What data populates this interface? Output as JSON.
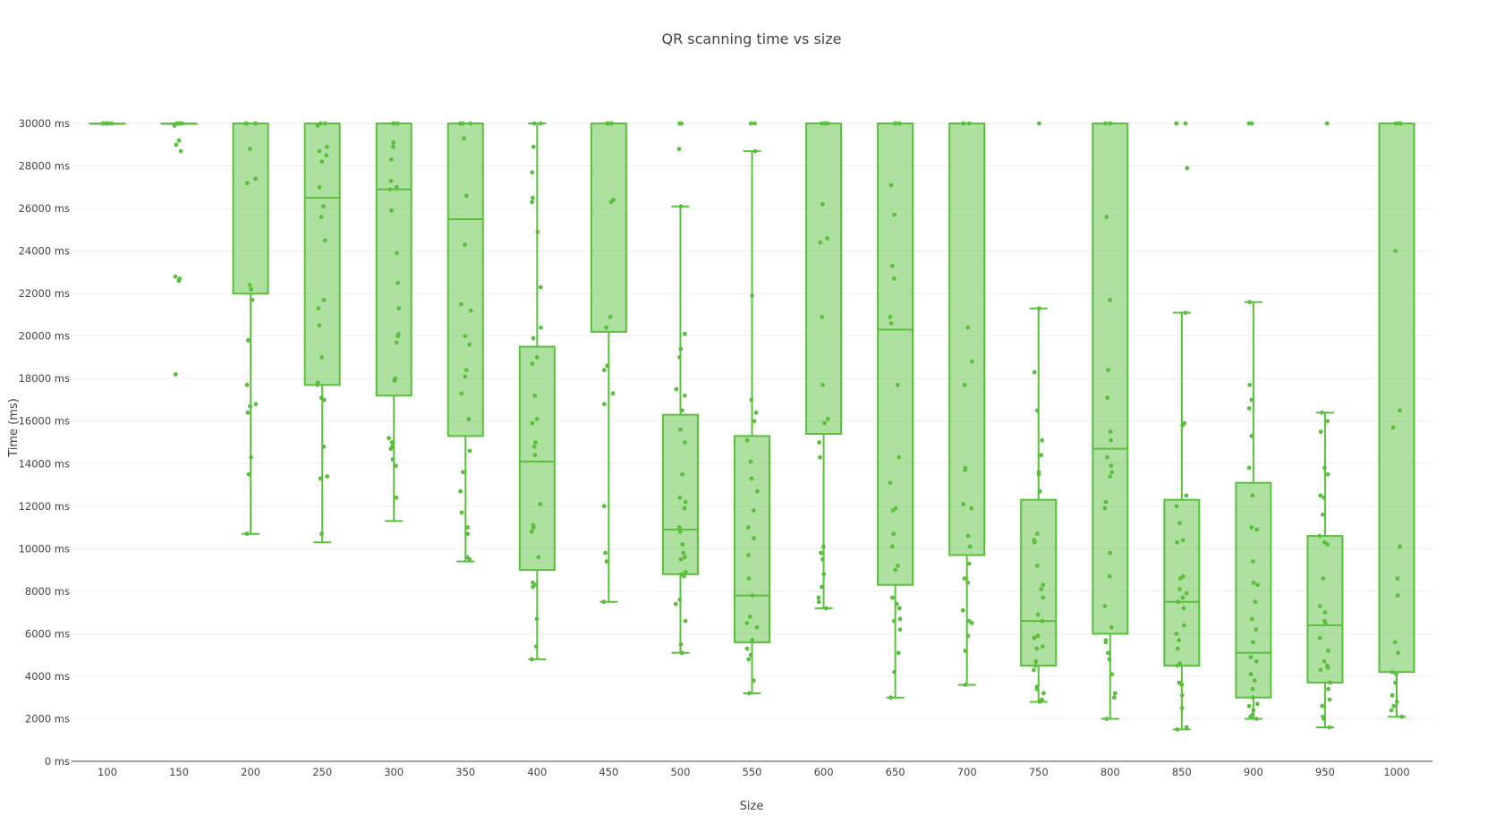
{
  "chart_data": {
    "type": "box",
    "title": "QR scanning time vs size",
    "xlabel": "Size",
    "ylabel": "Time (ms)",
    "ylim": [
      0,
      30000
    ],
    "grid": true,
    "legend": "none",
    "color": "#5bbf3e",
    "y_ticks": [
      {
        "value": 0,
        "label": "0 ms"
      },
      {
        "value": 2000,
        "label": "2000 ms"
      },
      {
        "value": 4000,
        "label": "4000 ms"
      },
      {
        "value": 6000,
        "label": "6000 ms"
      },
      {
        "value": 8000,
        "label": "8000 ms"
      },
      {
        "value": 10000,
        "label": "10000 ms"
      },
      {
        "value": 12000,
        "label": "12000 ms"
      },
      {
        "value": 14000,
        "label": "14000 ms"
      },
      {
        "value": 16000,
        "label": "16000 ms"
      },
      {
        "value": 18000,
        "label": "18000 ms"
      },
      {
        "value": 20000,
        "label": "20000 ms"
      },
      {
        "value": 22000,
        "label": "22000 ms"
      },
      {
        "value": 24000,
        "label": "24000 ms"
      },
      {
        "value": 26000,
        "label": "26000 ms"
      },
      {
        "value": 28000,
        "label": "28000 ms"
      },
      {
        "value": 30000,
        "label": "30000 ms"
      }
    ],
    "categories": [
      "100",
      "150",
      "200",
      "250",
      "300",
      "350",
      "400",
      "450",
      "500",
      "550",
      "600",
      "650",
      "700",
      "750",
      "800",
      "850",
      "900",
      "950",
      "1000"
    ],
    "boxes": [
      {
        "size": "100",
        "lower": 30000,
        "q1": 30000,
        "median": 30000,
        "q3": 30000,
        "upper": 30000,
        "points": [
          30000,
          30000,
          30000,
          30000,
          30000,
          30000,
          30000,
          30000
        ]
      },
      {
        "size": "150",
        "lower": 30000,
        "q1": 30000,
        "median": 30000,
        "q3": 30000,
        "upper": 30000,
        "points": [
          30000,
          30000,
          30000,
          30000,
          30000,
          29900,
          29200,
          29000,
          28700,
          22800,
          22700,
          22600,
          18200
        ]
      },
      {
        "size": "200",
        "lower": 10700,
        "q1": 22000,
        "median": 30000,
        "q3": 30000,
        "upper": 30000,
        "points": [
          30000,
          30000,
          30000,
          30000,
          28800,
          27400,
          27200,
          22400,
          22200,
          21700,
          19800,
          17700,
          16800,
          16700,
          16400,
          14300,
          13500,
          10700
        ]
      },
      {
        "size": "250",
        "lower": 10300,
        "q1": 17700,
        "median": 26500,
        "q3": 30000,
        "upper": 30000,
        "points": [
          30000,
          30000,
          30000,
          29900,
          28900,
          28700,
          28500,
          28200,
          27000,
          26100,
          25600,
          24500,
          21700,
          21300,
          20500,
          19000,
          17800,
          17700,
          17100,
          17000,
          14800,
          13400,
          13300,
          10700
        ]
      },
      {
        "size": "300",
        "lower": 11300,
        "q1": 17200,
        "median": 26900,
        "q3": 30000,
        "upper": 30000,
        "points": [
          30000,
          30000,
          30000,
          29100,
          28900,
          28300,
          27300,
          27000,
          26900,
          25900,
          23900,
          22500,
          21300,
          20100,
          20000,
          19700,
          18000,
          17900,
          15200,
          15000,
          14800,
          14700,
          14200,
          13900,
          12400
        ]
      },
      {
        "size": "350",
        "lower": 9400,
        "q1": 15300,
        "median": 25500,
        "q3": 30000,
        "upper": 30000,
        "points": [
          30000,
          30000,
          30000,
          29300,
          26600,
          24300,
          21500,
          21200,
          20000,
          19600,
          18400,
          18100,
          17300,
          16100,
          14600,
          13600,
          12700,
          11700,
          11000,
          10700,
          9600,
          9500
        ]
      },
      {
        "size": "400",
        "lower": 4800,
        "q1": 9000,
        "median": 14100,
        "q3": 19500,
        "upper": 30000,
        "points": [
          30000,
          30000,
          28900,
          27700,
          26500,
          26300,
          24900,
          22300,
          20400,
          19900,
          19000,
          18700,
          17200,
          16100,
          15900,
          15000,
          14800,
          14400,
          12100,
          11100,
          11000,
          10800,
          9600,
          8400,
          8300,
          8200,
          6700,
          5400,
          4800
        ]
      },
      {
        "size": "450",
        "lower": 7500,
        "q1": 20200,
        "median": 30000,
        "q3": 30000,
        "upper": 30000,
        "points": [
          30000,
          30000,
          30000,
          30000,
          26400,
          26300,
          20900,
          20400,
          18600,
          18400,
          17300,
          16800,
          12000,
          9800,
          9400,
          7500
        ]
      },
      {
        "size": "500",
        "lower": 5100,
        "q1": 8800,
        "median": 10900,
        "q3": 16300,
        "upper": 26100,
        "points": [
          30000,
          30000,
          28800,
          26100,
          20100,
          19400,
          19000,
          17500,
          17200,
          16500,
          15600,
          15000,
          13500,
          12400,
          12200,
          11900,
          11000,
          10800,
          10200,
          9800,
          9600,
          9500,
          8900,
          8800,
          8700,
          7600,
          7400,
          6600,
          5500,
          5100
        ]
      },
      {
        "size": "550",
        "lower": 3200,
        "q1": 5600,
        "median": 7800,
        "q3": 15300,
        "upper": 28700,
        "points": [
          30000,
          30000,
          28700,
          21900,
          17000,
          16400,
          16000,
          15100,
          14100,
          13300,
          12700,
          11800,
          11000,
          10500,
          9700,
          8600,
          7800,
          6800,
          6500,
          6300,
          5700,
          5300,
          5000,
          4800,
          3800,
          3200
        ]
      },
      {
        "size": "600",
        "lower": 7200,
        "q1": 15400,
        "median": 30000,
        "q3": 30000,
        "upper": 30000,
        "points": [
          30000,
          30000,
          30000,
          30000,
          26200,
          24600,
          24400,
          20900,
          17700,
          16100,
          15900,
          15000,
          14300,
          10100,
          9800,
          9500,
          8800,
          8200,
          7700,
          7500,
          7200
        ]
      },
      {
        "size": "650",
        "lower": 3000,
        "q1": 8300,
        "median": 20300,
        "q3": 30000,
        "upper": 30000,
        "points": [
          30000,
          30000,
          30000,
          27100,
          25700,
          23300,
          22700,
          20900,
          20600,
          17700,
          14300,
          13100,
          11900,
          11800,
          10700,
          10100,
          9200,
          9000,
          7700,
          7400,
          7200,
          6700,
          6600,
          6200,
          5100,
          4200,
          3000
        ]
      },
      {
        "size": "700",
        "lower": 3600,
        "q1": 9700,
        "median": 30000,
        "q3": 30000,
        "upper": 30000,
        "points": [
          30000,
          30000,
          30000,
          20400,
          18800,
          17700,
          13800,
          13700,
          12100,
          11900,
          10600,
          10100,
          9300,
          8600,
          8400,
          7100,
          6600,
          6500,
          5900,
          5200,
          3600
        ]
      },
      {
        "size": "750",
        "lower": 2800,
        "q1": 4500,
        "median": 6600,
        "q3": 12300,
        "upper": 21300,
        "points": [
          30000,
          21300,
          18300,
          16500,
          15100,
          14400,
          13600,
          13500,
          12700,
          10700,
          10400,
          10300,
          9200,
          8300,
          8100,
          7700,
          6900,
          6600,
          5900,
          5800,
          5400,
          5300,
          4700,
          4500,
          4300,
          3500,
          3400,
          3200,
          2900,
          2800
        ]
      },
      {
        "size": "800",
        "lower": 2000,
        "q1": 6000,
        "median": 14700,
        "q3": 30000,
        "upper": 30000,
        "points": [
          30000,
          30000,
          30000,
          25600,
          21700,
          18400,
          17100,
          15500,
          15100,
          14300,
          13900,
          13600,
          13400,
          12200,
          11900,
          9800,
          8700,
          7300,
          6300,
          5700,
          5600,
          5100,
          4800,
          4100,
          3200,
          3000,
          2000
        ]
      },
      {
        "size": "850",
        "lower": 1500,
        "q1": 4500,
        "median": 7500,
        "q3": 12300,
        "upper": 21100,
        "points": [
          30000,
          30000,
          27900,
          21100,
          15900,
          15800,
          12500,
          12000,
          11200,
          10400,
          10300,
          8700,
          8600,
          8100,
          7900,
          7700,
          7500,
          7200,
          6400,
          6000,
          5700,
          5300,
          4600,
          4500,
          3700,
          3600,
          3100,
          2500,
          1600,
          1500
        ]
      },
      {
        "size": "900",
        "lower": 2000,
        "q1": 3000,
        "median": 5100,
        "q3": 13100,
        "upper": 21600,
        "points": [
          30000,
          30000,
          21600,
          17700,
          17000,
          16600,
          15300,
          13800,
          12500,
          11000,
          10900,
          9400,
          8400,
          8300,
          7500,
          6700,
          6200,
          5600,
          4900,
          4700,
          4100,
          3800,
          3400,
          3000,
          2700,
          2600,
          2400,
          2200,
          2100,
          2000
        ]
      },
      {
        "size": "950",
        "lower": 1600,
        "q1": 3700,
        "median": 6400,
        "q3": 10600,
        "upper": 16400,
        "points": [
          30000,
          16400,
          16000,
          15500,
          13800,
          13500,
          12500,
          12400,
          11600,
          10600,
          10300,
          10200,
          8600,
          7300,
          7000,
          6600,
          6500,
          5800,
          5200,
          4700,
          4500,
          4400,
          4300,
          3700,
          3400,
          2900,
          2600,
          2100,
          2000,
          1600
        ]
      },
      {
        "size": "1000",
        "lower": 2100,
        "q1": 4200,
        "median": 30000,
        "q3": 30000,
        "upper": 30000,
        "points": [
          30000,
          30000,
          30000,
          24000,
          16500,
          15700,
          10100,
          8600,
          7800,
          5600,
          5100,
          4200,
          4100,
          3700,
          3100,
          2800,
          2600,
          2400,
          2100
        ]
      }
    ]
  }
}
